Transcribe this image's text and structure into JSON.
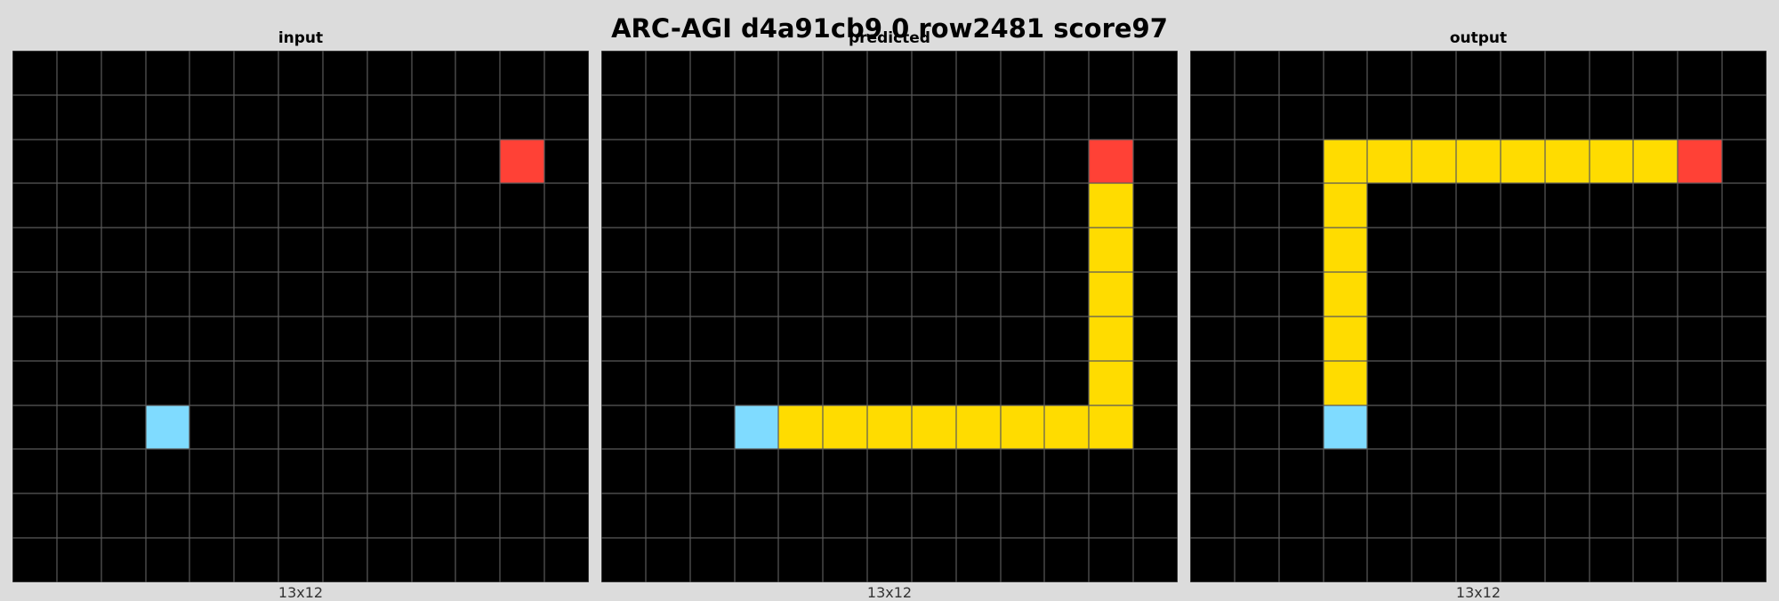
{
  "title": "ARC-AGI d4a91cb9 0 row2481 score97",
  "palette": {
    "0": "#000000",
    "2": "#ff4136",
    "4": "#ffdc00",
    "8": "#7fdbff"
  },
  "panels": [
    {
      "label": "input",
      "caption": "13x12",
      "grid": [
        [
          0,
          0,
          0,
          0,
          0,
          0,
          0,
          0,
          0,
          0,
          0,
          0,
          0
        ],
        [
          0,
          0,
          0,
          0,
          0,
          0,
          0,
          0,
          0,
          0,
          0,
          0,
          0
        ],
        [
          0,
          0,
          0,
          0,
          0,
          0,
          0,
          0,
          0,
          0,
          0,
          2,
          0
        ],
        [
          0,
          0,
          0,
          0,
          0,
          0,
          0,
          0,
          0,
          0,
          0,
          0,
          0
        ],
        [
          0,
          0,
          0,
          0,
          0,
          0,
          0,
          0,
          0,
          0,
          0,
          0,
          0
        ],
        [
          0,
          0,
          0,
          0,
          0,
          0,
          0,
          0,
          0,
          0,
          0,
          0,
          0
        ],
        [
          0,
          0,
          0,
          0,
          0,
          0,
          0,
          0,
          0,
          0,
          0,
          0,
          0
        ],
        [
          0,
          0,
          0,
          0,
          0,
          0,
          0,
          0,
          0,
          0,
          0,
          0,
          0
        ],
        [
          0,
          0,
          0,
          8,
          0,
          0,
          0,
          0,
          0,
          0,
          0,
          0,
          0
        ],
        [
          0,
          0,
          0,
          0,
          0,
          0,
          0,
          0,
          0,
          0,
          0,
          0,
          0
        ],
        [
          0,
          0,
          0,
          0,
          0,
          0,
          0,
          0,
          0,
          0,
          0,
          0,
          0
        ],
        [
          0,
          0,
          0,
          0,
          0,
          0,
          0,
          0,
          0,
          0,
          0,
          0,
          0
        ]
      ]
    },
    {
      "label": "predicted",
      "caption": "13x12",
      "grid": [
        [
          0,
          0,
          0,
          0,
          0,
          0,
          0,
          0,
          0,
          0,
          0,
          0,
          0
        ],
        [
          0,
          0,
          0,
          0,
          0,
          0,
          0,
          0,
          0,
          0,
          0,
          0,
          0
        ],
        [
          0,
          0,
          0,
          0,
          0,
          0,
          0,
          0,
          0,
          0,
          0,
          2,
          0
        ],
        [
          0,
          0,
          0,
          0,
          0,
          0,
          0,
          0,
          0,
          0,
          0,
          4,
          0
        ],
        [
          0,
          0,
          0,
          0,
          0,
          0,
          0,
          0,
          0,
          0,
          0,
          4,
          0
        ],
        [
          0,
          0,
          0,
          0,
          0,
          0,
          0,
          0,
          0,
          0,
          0,
          4,
          0
        ],
        [
          0,
          0,
          0,
          0,
          0,
          0,
          0,
          0,
          0,
          0,
          0,
          4,
          0
        ],
        [
          0,
          0,
          0,
          0,
          0,
          0,
          0,
          0,
          0,
          0,
          0,
          4,
          0
        ],
        [
          0,
          0,
          0,
          8,
          4,
          4,
          4,
          4,
          4,
          4,
          4,
          4,
          0
        ],
        [
          0,
          0,
          0,
          0,
          0,
          0,
          0,
          0,
          0,
          0,
          0,
          0,
          0
        ],
        [
          0,
          0,
          0,
          0,
          0,
          0,
          0,
          0,
          0,
          0,
          0,
          0,
          0
        ],
        [
          0,
          0,
          0,
          0,
          0,
          0,
          0,
          0,
          0,
          0,
          0,
          0,
          0
        ]
      ]
    },
    {
      "label": "output",
      "caption": "13x12",
      "grid": [
        [
          0,
          0,
          0,
          0,
          0,
          0,
          0,
          0,
          0,
          0,
          0,
          0,
          0
        ],
        [
          0,
          0,
          0,
          0,
          0,
          0,
          0,
          0,
          0,
          0,
          0,
          0,
          0
        ],
        [
          0,
          0,
          0,
          4,
          4,
          4,
          4,
          4,
          4,
          4,
          4,
          2,
          0
        ],
        [
          0,
          0,
          0,
          4,
          0,
          0,
          0,
          0,
          0,
          0,
          0,
          0,
          0
        ],
        [
          0,
          0,
          0,
          4,
          0,
          0,
          0,
          0,
          0,
          0,
          0,
          0,
          0
        ],
        [
          0,
          0,
          0,
          4,
          0,
          0,
          0,
          0,
          0,
          0,
          0,
          0,
          0
        ],
        [
          0,
          0,
          0,
          4,
          0,
          0,
          0,
          0,
          0,
          0,
          0,
          0,
          0
        ],
        [
          0,
          0,
          0,
          4,
          0,
          0,
          0,
          0,
          0,
          0,
          0,
          0,
          0
        ],
        [
          0,
          0,
          0,
          8,
          0,
          0,
          0,
          0,
          0,
          0,
          0,
          0,
          0
        ],
        [
          0,
          0,
          0,
          0,
          0,
          0,
          0,
          0,
          0,
          0,
          0,
          0,
          0
        ],
        [
          0,
          0,
          0,
          0,
          0,
          0,
          0,
          0,
          0,
          0,
          0,
          0,
          0
        ],
        [
          0,
          0,
          0,
          0,
          0,
          0,
          0,
          0,
          0,
          0,
          0,
          0,
          0
        ]
      ]
    }
  ]
}
